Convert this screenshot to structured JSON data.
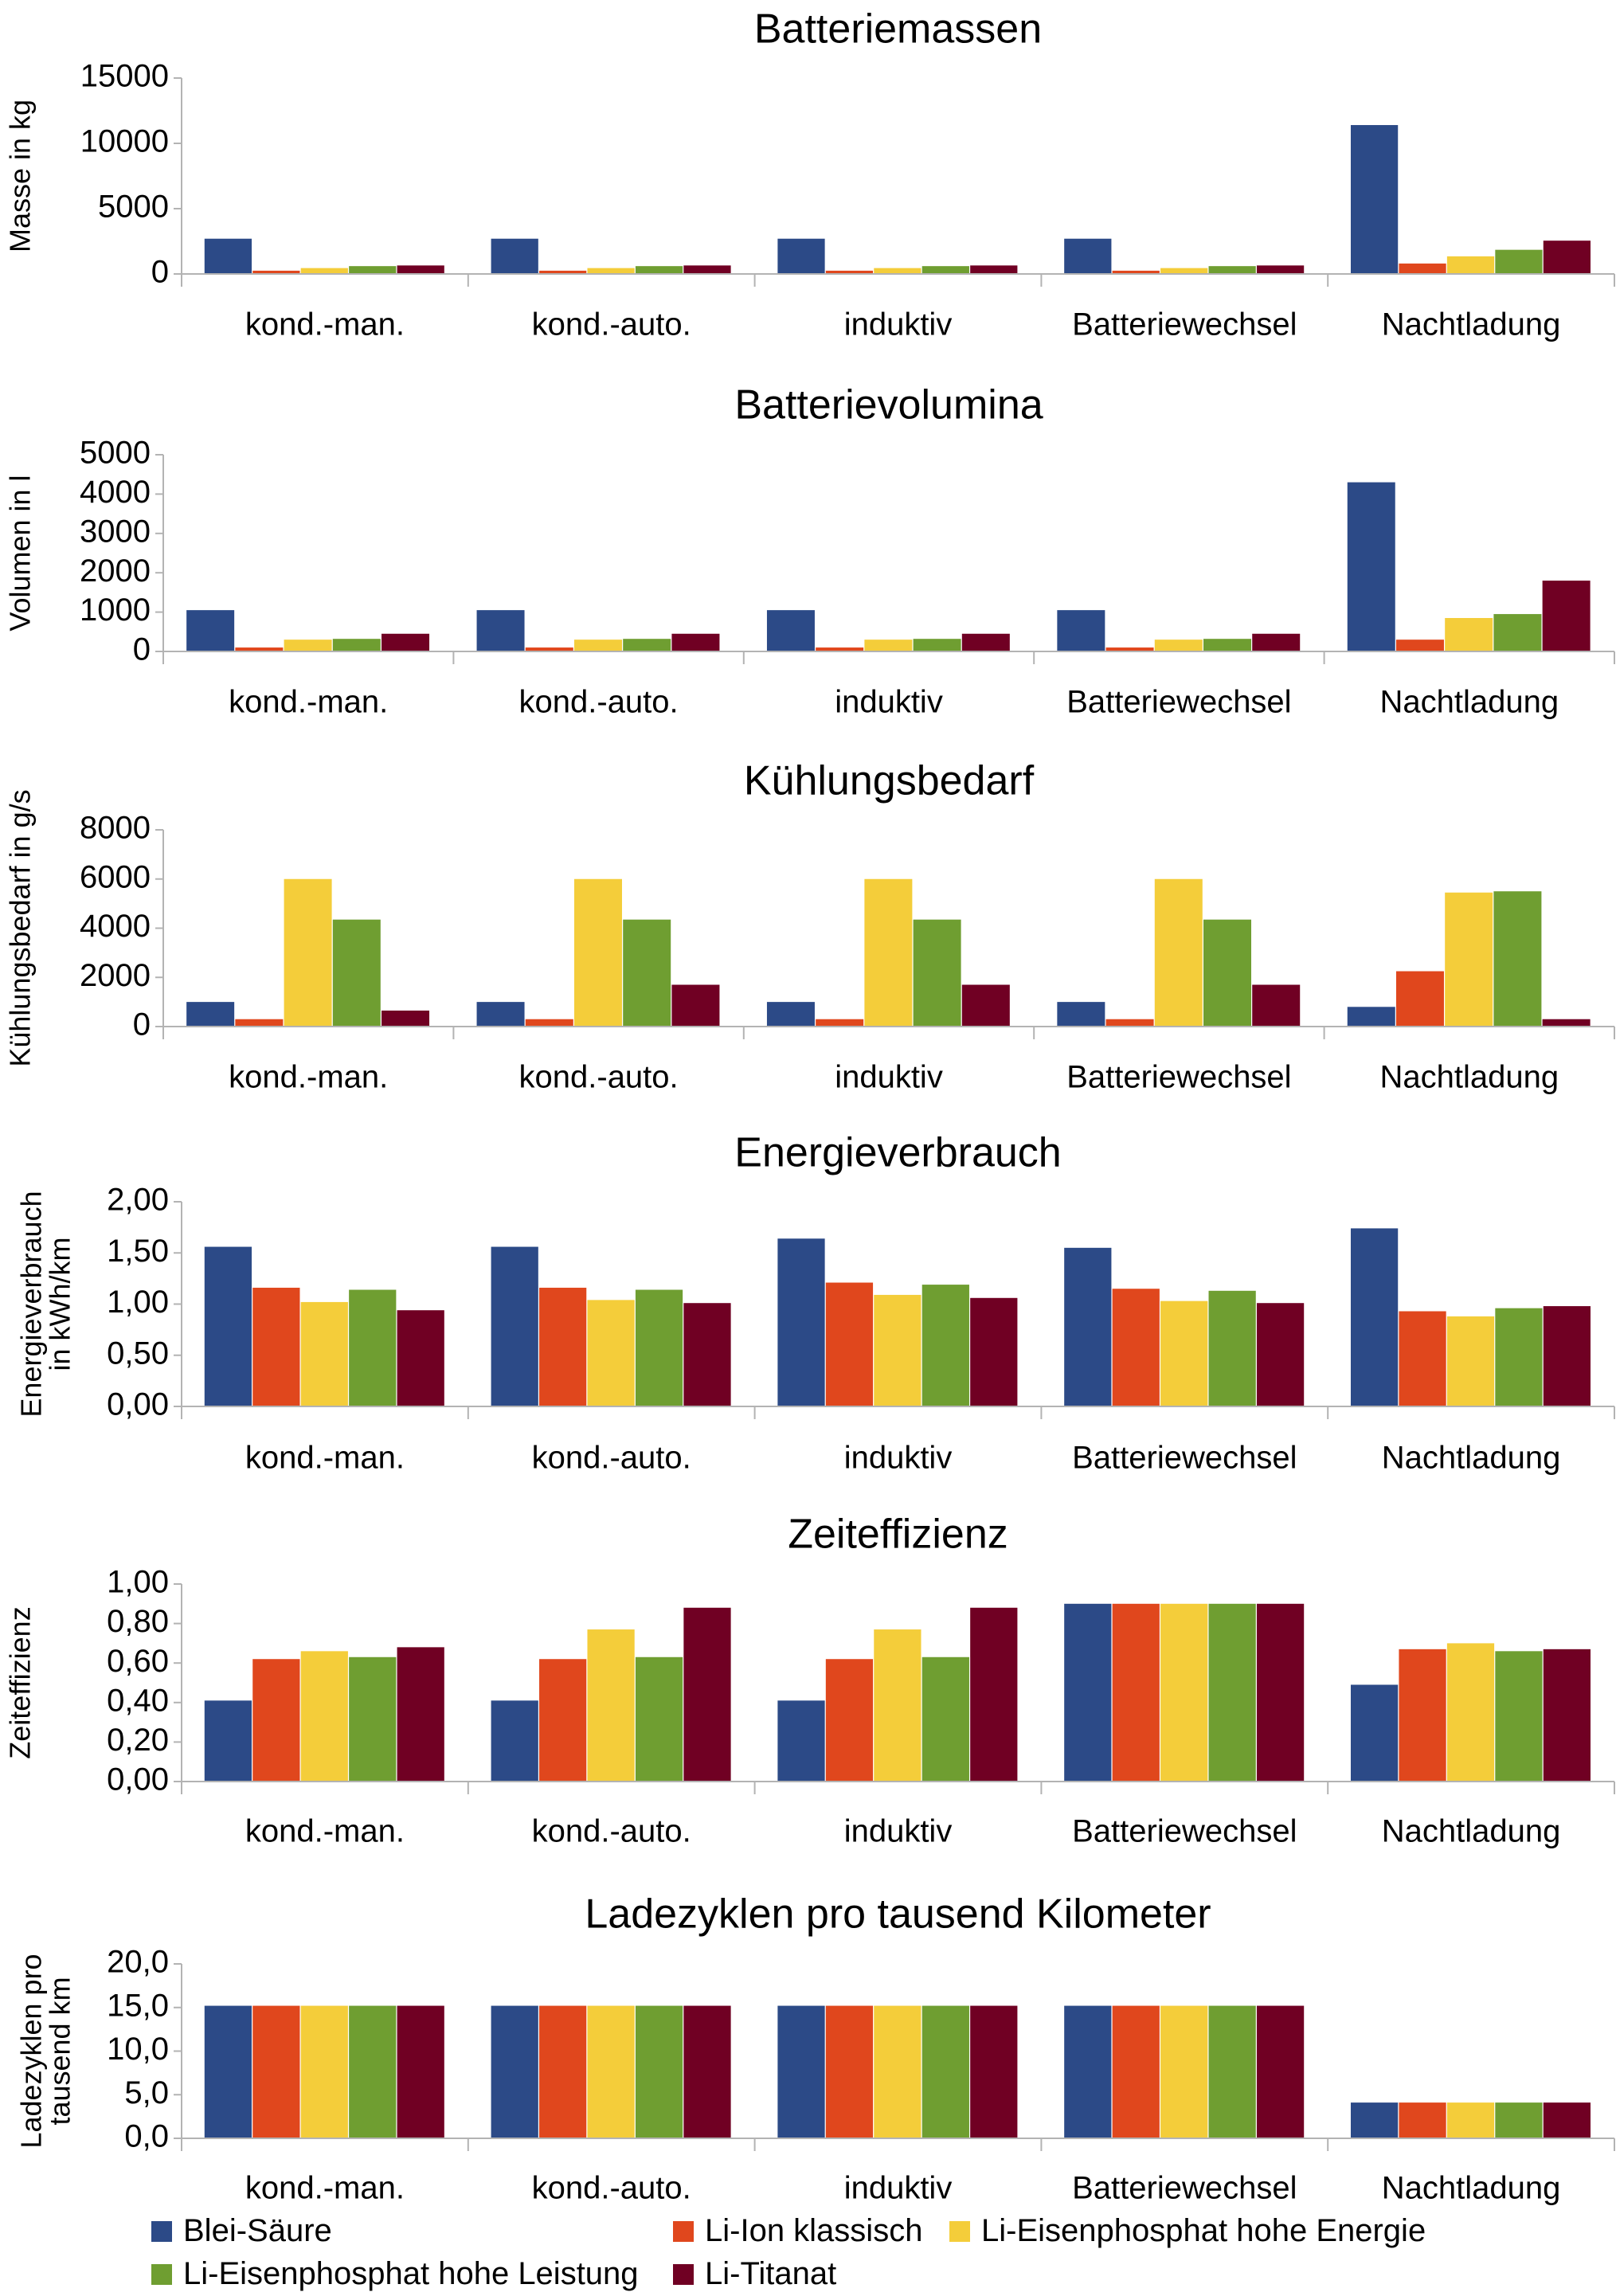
{
  "colors": {
    "series": [
      "#2c4a87",
      "#e0471d",
      "#f4cd3a",
      "#6f9e31",
      "#700023"
    ],
    "axis": "#b3b3b3",
    "text": "#000000"
  },
  "legend": {
    "items": [
      "Blei-Säure",
      "Li-Ion klassisch",
      "Li-Eisenphosphat hohe Energie",
      "Li-Eisenphosphat hohe Leistung",
      "Li-Titanat"
    ],
    "placement": "bottom"
  },
  "chart_data": [
    {
      "type": "bar",
      "title": "Batteriemassen",
      "ylabel": [
        "Masse in kg"
      ],
      "categories": [
        "kond.-man.",
        "kond.-auto.",
        "induktiv",
        "Batteriewechsel",
        "Nachtladung"
      ],
      "ylim": [
        0,
        15000
      ],
      "yticks": [
        "0",
        "5000",
        "10000",
        "15000"
      ],
      "series": [
        {
          "name": "Blei-Säure",
          "values": [
            2700,
            2700,
            2700,
            2700,
            11400
          ]
        },
        {
          "name": "Li-Ion klassisch",
          "values": [
            250,
            250,
            250,
            250,
            800
          ]
        },
        {
          "name": "Li-Eisenphosphat hohe Energie",
          "values": [
            450,
            450,
            450,
            450,
            1350
          ]
        },
        {
          "name": "Li-Eisenphosphat hohe Leistung",
          "values": [
            600,
            600,
            600,
            600,
            1850
          ]
        },
        {
          "name": "Li-Titanat",
          "values": [
            650,
            650,
            650,
            650,
            2550
          ]
        }
      ]
    },
    {
      "type": "bar",
      "title": "Batterievolumina",
      "ylabel": [
        "Volumen in l"
      ],
      "categories": [
        "kond.-man.",
        "kond.-auto.",
        "induktiv",
        "Batteriewechsel",
        "Nachtladung"
      ],
      "ylim": [
        0,
        5000
      ],
      "yticks": [
        "0",
        "1000",
        "2000",
        "3000",
        "4000",
        "5000"
      ],
      "series": [
        {
          "name": "Blei-Säure",
          "values": [
            1050,
            1050,
            1050,
            1050,
            4300
          ]
        },
        {
          "name": "Li-Ion klassisch",
          "values": [
            100,
            100,
            100,
            100,
            300
          ]
        },
        {
          "name": "Li-Eisenphosphat hohe Energie",
          "values": [
            300,
            300,
            300,
            300,
            850
          ]
        },
        {
          "name": "Li-Eisenphosphat hohe Leistung",
          "values": [
            320,
            320,
            320,
            320,
            950
          ]
        },
        {
          "name": "Li-Titanat",
          "values": [
            450,
            450,
            450,
            450,
            1800
          ]
        }
      ]
    },
    {
      "type": "bar",
      "title": "Kühlungsbedarf",
      "ylabel": [
        "Kühlungsbedarf in g/s"
      ],
      "categories": [
        "kond.-man.",
        "kond.-auto.",
        "induktiv",
        "Batteriewechsel",
        "Nachtladung"
      ],
      "ylim": [
        0,
        8000
      ],
      "yticks": [
        "0",
        "2000",
        "4000",
        "6000",
        "8000"
      ],
      "series": [
        {
          "name": "Blei-Säure",
          "values": [
            1000,
            1000,
            1000,
            1000,
            800
          ]
        },
        {
          "name": "Li-Ion klassisch",
          "values": [
            300,
            300,
            300,
            300,
            2250
          ]
        },
        {
          "name": "Li-Eisenphosphat hohe Energie",
          "values": [
            6000,
            6000,
            6000,
            6000,
            5450
          ]
        },
        {
          "name": "Li-Eisenphosphat hohe Leistung",
          "values": [
            4350,
            4350,
            4350,
            4350,
            5500
          ]
        },
        {
          "name": "Li-Titanat",
          "values": [
            650,
            1700,
            1700,
            1700,
            300
          ]
        }
      ]
    },
    {
      "type": "bar",
      "title": "Energieverbrauch",
      "ylabel": [
        "Energieverbrauch",
        "in kWh/km"
      ],
      "categories": [
        "kond.-man.",
        "kond.-auto.",
        "induktiv",
        "Batteriewechsel",
        "Nachtladung"
      ],
      "ylim": [
        0,
        2
      ],
      "yticks": [
        "0,00",
        "0,50",
        "1,00",
        "1,50",
        "2,00"
      ],
      "series": [
        {
          "name": "Blei-Säure",
          "values": [
            1.56,
            1.56,
            1.64,
            1.55,
            1.74
          ]
        },
        {
          "name": "Li-Ion klassisch",
          "values": [
            1.16,
            1.16,
            1.21,
            1.15,
            0.93
          ]
        },
        {
          "name": "Li-Eisenphosphat hohe Energie",
          "values": [
            1.02,
            1.04,
            1.09,
            1.03,
            0.88
          ]
        },
        {
          "name": "Li-Eisenphosphat hohe Leistung",
          "values": [
            1.14,
            1.14,
            1.19,
            1.13,
            0.96
          ]
        },
        {
          "name": "Li-Titanat",
          "values": [
            0.94,
            1.01,
            1.06,
            1.01,
            0.98
          ]
        }
      ]
    },
    {
      "type": "bar",
      "title": "Zeiteffizienz",
      "ylabel": [
        "Zeiteffizienz"
      ],
      "categories": [
        "kond.-man.",
        "kond.-auto.",
        "induktiv",
        "Batteriewechsel",
        "Nachtladung"
      ],
      "ylim": [
        0,
        1
      ],
      "yticks": [
        "0,00",
        "0,20",
        "0,40",
        "0,60",
        "0,80",
        "1,00"
      ],
      "series": [
        {
          "name": "Blei-Säure",
          "values": [
            0.41,
            0.41,
            0.41,
            0.9,
            0.49
          ]
        },
        {
          "name": "Li-Ion klassisch",
          "values": [
            0.62,
            0.62,
            0.62,
            0.9,
            0.67
          ]
        },
        {
          "name": "Li-Eisenphosphat hohe Energie",
          "values": [
            0.66,
            0.77,
            0.77,
            0.9,
            0.7
          ]
        },
        {
          "name": "Li-Eisenphosphat hohe Leistung",
          "values": [
            0.63,
            0.63,
            0.63,
            0.9,
            0.66
          ]
        },
        {
          "name": "Li-Titanat",
          "values": [
            0.68,
            0.88,
            0.88,
            0.9,
            0.67
          ]
        }
      ]
    },
    {
      "type": "bar",
      "title": "Ladezyklen pro tausend Kilometer",
      "ylabel": [
        "Ladezyklen pro",
        "tausend km"
      ],
      "categories": [
        "kond.-man.",
        "kond.-auto.",
        "induktiv",
        "Batteriewechsel",
        "Nachtladung"
      ],
      "ylim": [
        0,
        20
      ],
      "yticks": [
        "0,0",
        "5,0",
        "10,0",
        "15,0",
        "20,0"
      ],
      "series": [
        {
          "name": "Blei-Säure",
          "values": [
            15.2,
            15.2,
            15.2,
            15.2,
            4.1
          ]
        },
        {
          "name": "Li-Ion klassisch",
          "values": [
            15.2,
            15.2,
            15.2,
            15.2,
            4.1
          ]
        },
        {
          "name": "Li-Eisenphosphat hohe Energie",
          "values": [
            15.2,
            15.2,
            15.2,
            15.2,
            4.1
          ]
        },
        {
          "name": "Li-Eisenphosphat hohe Leistung",
          "values": [
            15.2,
            15.2,
            15.2,
            15.2,
            4.1
          ]
        },
        {
          "name": "Li-Titanat",
          "values": [
            15.2,
            15.2,
            15.2,
            15.2,
            4.1
          ]
        }
      ]
    }
  ]
}
